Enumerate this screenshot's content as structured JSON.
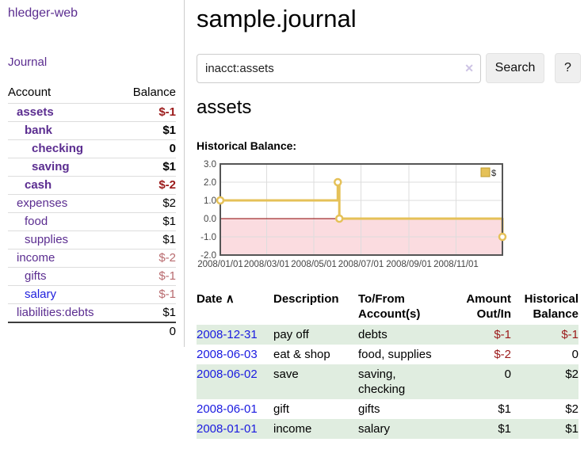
{
  "app": {
    "brand": "hledger-web",
    "nav_journal": "Journal"
  },
  "sidebar": {
    "header": {
      "account": "Account",
      "balance": "Balance"
    },
    "accounts": [
      {
        "name": "assets",
        "balance": "$-1"
      },
      {
        "name": "bank",
        "balance": "$1"
      },
      {
        "name": "checking",
        "balance": "0"
      },
      {
        "name": "saving",
        "balance": "$1"
      },
      {
        "name": "cash",
        "balance": "$-2"
      },
      {
        "name": "expenses",
        "balance": "$2"
      },
      {
        "name": "food",
        "balance": "$1"
      },
      {
        "name": "supplies",
        "balance": "$1"
      },
      {
        "name": "income",
        "balance": "$-2"
      },
      {
        "name": "gifts",
        "balance": "$-1"
      },
      {
        "name": "salary",
        "balance": "$-1"
      },
      {
        "name": "liabilities:debts",
        "balance": "$1"
      }
    ],
    "total": "0"
  },
  "main": {
    "title": "sample.journal",
    "search": {
      "query": "inacct:assets",
      "clear_icon": "✕",
      "button": "Search",
      "help_button": "?"
    },
    "account_heading": "assets",
    "chart_label": "Historical Balance:"
  },
  "journal": {
    "headers": {
      "date": "Date",
      "sort_icon": "∧",
      "description": "Description",
      "tofrom_line1": "To/From",
      "tofrom_line2": "Account(s)",
      "amount_line1": "Amount",
      "amount_line2": "Out/In",
      "balance_line1": "Historical",
      "balance_line2": "Balance"
    },
    "rows": [
      {
        "date": "2008-12-31",
        "description": "pay off",
        "accounts": "debts",
        "amount": "$-1",
        "balance": "$-1"
      },
      {
        "date": "2008-06-03",
        "description": "eat & shop",
        "accounts": "food, supplies",
        "amount": "$-2",
        "balance": "0"
      },
      {
        "date": "2008-06-02",
        "description": "save",
        "accounts": "saving, checking",
        "amount": "0",
        "balance": "$2"
      },
      {
        "date": "2008-06-01",
        "description": "gift",
        "accounts": "gifts",
        "amount": "$1",
        "balance": "$2"
      },
      {
        "date": "2008-01-01",
        "description": "income",
        "accounts": "salary",
        "amount": "$1",
        "balance": "$1"
      }
    ]
  },
  "colors": {
    "link_purple": "#5b2d90",
    "link_blue": "#1a1ae0",
    "negative_strong": "#9b1a1a",
    "negative_muted": "#b86a6e",
    "row_stripe_green": "#e0ede0",
    "button_gray": "#efefef"
  },
  "chart_data": {
    "type": "line",
    "title": "Historical Balance:",
    "legend": "$",
    "legend_position": "top-right",
    "grid": true,
    "step": true,
    "x_range": [
      "2008-01-01",
      "2008-12-31"
    ],
    "ylim": [
      -2.0,
      3.0
    ],
    "y_ticks": [
      "3.0",
      "2.0",
      "1.0",
      "0.0",
      "-1.0",
      "-2.0"
    ],
    "x_ticks": [
      "2008/01/01",
      "2008/03/01",
      "2008/05/01",
      "2008/07/01",
      "2008/09/01",
      "2008/11/01"
    ],
    "series": [
      {
        "name": "$",
        "points": [
          [
            "2008-01-01",
            1.0
          ],
          [
            "2008-06-01",
            2.0
          ],
          [
            "2008-06-03",
            0.0
          ],
          [
            "2008-12-31",
            -1.0
          ]
        ]
      }
    ],
    "line_color": "#e5c158",
    "marker_fill": "#ffffff",
    "negative_region_fill": "#fbdce0",
    "zero_line_color": "#8b0000",
    "border_color": "#555555",
    "grid_color": "#dddddd"
  }
}
